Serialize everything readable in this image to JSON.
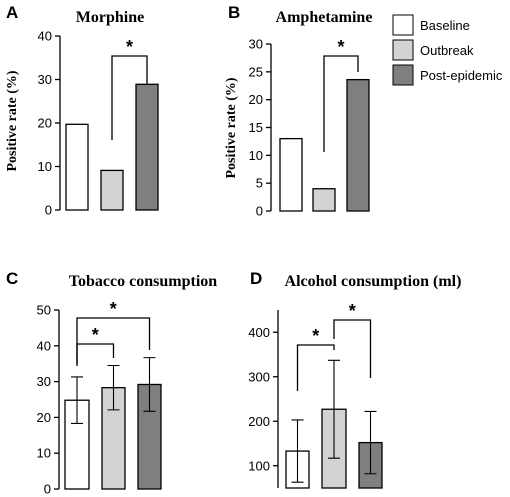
{
  "colors": {
    "baseline": "#ffffff",
    "outbreak": "#d3d3d3",
    "post_epidemic": "#7f7f7f",
    "stroke": "#000000"
  },
  "legend": {
    "position": "top-right",
    "items": [
      {
        "label": "Baseline",
        "color": "#ffffff"
      },
      {
        "label": "Outbreak",
        "color": "#d3d3d3"
      },
      {
        "label": "Post-epidemic",
        "color": "#7f7f7f"
      }
    ]
  },
  "chart_data": [
    {
      "panel": "A",
      "type": "bar",
      "title": "Morphine",
      "ylabel": "Positive rate (%)",
      "ylim": [
        0,
        40
      ],
      "yticks": [
        0,
        10,
        20,
        30,
        40
      ],
      "categories": [
        "Baseline",
        "Outbreak",
        "Post-epidemic"
      ],
      "values": [
        19.7,
        9.1,
        28.9
      ],
      "errors": null,
      "significance": [
        {
          "from": 1,
          "to": 2,
          "label": "*"
        }
      ]
    },
    {
      "panel": "B",
      "type": "bar",
      "title": "Amphetamine",
      "ylabel": "Positive rate (%)",
      "ylim": [
        0,
        30
      ],
      "yticks": [
        0,
        5,
        10,
        15,
        20,
        25,
        30
      ],
      "categories": [
        "Baseline",
        "Outbreak",
        "Post-epidemic"
      ],
      "values": [
        13.0,
        4.0,
        23.6
      ],
      "errors": null,
      "significance": [
        {
          "from": 1,
          "to": 2,
          "label": "*"
        }
      ]
    },
    {
      "panel": "C",
      "type": "bar",
      "title": "Tobacco consumption",
      "ylabel": "",
      "ylim": [
        0,
        50
      ],
      "yticks": [
        0,
        10,
        20,
        30,
        40,
        50
      ],
      "categories": [
        "Baseline",
        "Outbreak",
        "Post-epidemic"
      ],
      "values": [
        24.8,
        28.3,
        29.2
      ],
      "errors": [
        6.5,
        6.2,
        7.5
      ],
      "significance": [
        {
          "from": 0,
          "to": 1,
          "label": "*"
        },
        {
          "from": 0,
          "to": 2,
          "label": "*"
        }
      ]
    },
    {
      "panel": "D",
      "type": "bar",
      "title": "Alcohol consumption (ml)",
      "ylabel": "",
      "ylim": [
        50,
        450
      ],
      "yticks": [
        100,
        200,
        300,
        400
      ],
      "categories": [
        "Baseline",
        "Outbreak",
        "Post-epidemic"
      ],
      "values": [
        133,
        227,
        152
      ],
      "errors": [
        70,
        110,
        70
      ],
      "significance": [
        {
          "from": 0,
          "to": 1,
          "label": "*"
        },
        {
          "from": 1,
          "to": 2,
          "label": "*"
        }
      ]
    }
  ]
}
